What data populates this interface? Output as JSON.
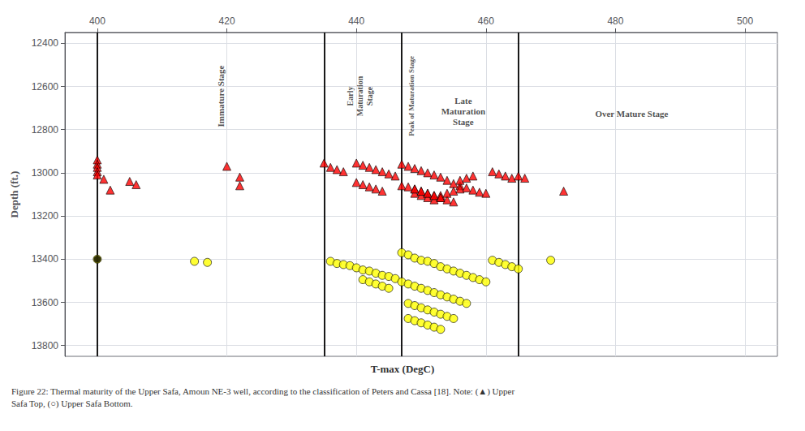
{
  "chart_data": {
    "type": "scatter",
    "xlabel": "T-max (DegC)",
    "ylabel": "Depth (ft.)",
    "xlim": [
      395,
      505
    ],
    "ylim": [
      13850,
      12350
    ],
    "xticks": [
      400,
      420,
      440,
      460,
      480,
      500
    ],
    "yticks": [
      12400,
      12600,
      12800,
      13000,
      13200,
      13400,
      13600,
      13800
    ],
    "grid": true,
    "vertical_lines": {
      "values": [
        400,
        435,
        447,
        465
      ],
      "color": "#000000"
    },
    "annotations": [
      {
        "text": "Immature Stage",
        "x": 419,
        "y": 12645
      },
      {
        "text": "Early\nMaturation\nStage",
        "x": 440.5,
        "y": 12645
      },
      {
        "text": "Peak of Maturation Stage",
        "x": 448.5,
        "y": 12645
      },
      {
        "text": "Late\nMaturation\nStage",
        "x": 456.5,
        "y": 12715
      },
      {
        "text": "Over Mature Stage",
        "x": 482.5,
        "y": 12725
      }
    ],
    "caption": "Figure 22: Thermal maturity of the Upper Safa, Amoun NE-3 well, according to the classification of Peters and Cassa [18]. Note: (▲) Upper\nSafa Top, (○) Upper Safa Bottom.",
    "series": [
      {
        "color": "red",
        "marker": "triangle",
        "x": [
          400,
          400,
          400,
          400,
          400,
          401,
          402,
          405,
          406,
          420,
          422,
          422,
          435,
          436,
          437,
          438,
          440,
          441,
          442,
          443,
          444,
          445,
          446,
          447,
          448,
          449,
          450,
          451,
          452,
          453,
          454,
          455,
          456,
          457,
          458,
          459,
          460,
          447,
          448,
          449,
          450,
          451,
          452,
          453,
          454,
          455,
          456,
          457,
          458,
          449,
          450,
          451,
          452,
          453,
          454,
          455,
          456,
          449,
          450,
          451,
          452,
          453,
          440,
          441,
          442,
          443,
          444,
          461,
          462,
          463,
          464,
          465,
          466,
          472
        ],
        "y": [
          12940,
          12960,
          12975,
          12995,
          13010,
          13030,
          13080,
          13040,
          13055,
          12970,
          13020,
          13060,
          12955,
          12975,
          12985,
          12995,
          12955,
          12965,
          12975,
          12985,
          12995,
          13005,
          13015,
          12960,
          12970,
          12980,
          12990,
          13000,
          13010,
          13020,
          13035,
          13050,
          13060,
          13070,
          13080,
          13090,
          13095,
          13060,
          13065,
          13075,
          13085,
          13095,
          13105,
          13115,
          13125,
          13135,
          13035,
          13025,
          13015,
          13095,
          13105,
          13115,
          13125,
          13105,
          13095,
          13085,
          13075,
          13075,
          13085,
          13095,
          13105,
          13115,
          13045,
          13055,
          13065,
          13075,
          13085,
          12995,
          13005,
          13015,
          13025,
          13015,
          13025,
          13085
        ]
      },
      {
        "color": "yellow",
        "marker": "circle",
        "x": [
          400,
          415,
          417,
          436,
          437,
          438,
          439,
          440,
          441,
          442,
          443,
          444,
          445,
          446,
          447,
          448,
          449,
          450,
          451,
          452,
          453,
          454,
          455,
          456,
          457,
          458,
          459,
          460,
          447,
          448,
          449,
          450,
          451,
          452,
          453,
          454,
          455,
          456,
          457,
          448,
          449,
          450,
          451,
          452,
          453,
          454,
          455,
          448,
          449,
          450,
          451,
          452,
          453,
          441,
          442,
          443,
          444,
          445,
          461,
          462,
          463,
          464,
          465,
          470
        ],
        "y": [
          13400,
          13410,
          13415,
          13410,
          13420,
          13425,
          13430,
          13440,
          13450,
          13455,
          13465,
          13475,
          13480,
          13490,
          13370,
          13380,
          13395,
          13405,
          13410,
          13420,
          13435,
          13445,
          13455,
          13465,
          13475,
          13485,
          13495,
          13505,
          13505,
          13515,
          13525,
          13535,
          13545,
          13555,
          13565,
          13575,
          13585,
          13595,
          13605,
          13605,
          13615,
          13625,
          13635,
          13645,
          13655,
          13665,
          13675,
          13675,
          13685,
          13695,
          13705,
          13715,
          13725,
          13495,
          13505,
          13515,
          13525,
          13535,
          13405,
          13415,
          13425,
          13435,
          13445,
          13405
        ]
      },
      {
        "color": "black",
        "marker": "circle",
        "x": [
          400
        ],
        "y": [
          13400
        ]
      }
    ]
  }
}
